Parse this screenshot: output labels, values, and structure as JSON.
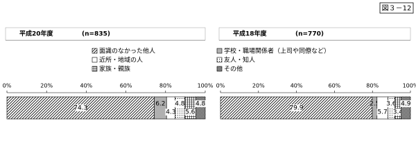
{
  "chart_data": {
    "type": "stacked-bar-horizontal",
    "figure_label": "図３－12",
    "categories": [
      "平成20年度",
      "平成18年度"
    ],
    "subtitles": [
      "(n=835)",
      "(n=770)"
    ],
    "xlim": [
      0,
      100
    ],
    "xticks": [
      {
        "value": 0,
        "label": "0%"
      },
      {
        "value": 20,
        "label": "20%"
      },
      {
        "value": 40,
        "label": "40%"
      },
      {
        "value": 60,
        "label": "60%"
      },
      {
        "value": 80,
        "label": "80%"
      },
      {
        "value": 100,
        "label": "100%"
      }
    ],
    "series": [
      {
        "name": "面識のなかった他人",
        "color": "#ffffff",
        "pattern": "hatch",
        "values": [
          74.3,
          79.9
        ]
      },
      {
        "name": "学校・職場関係者（上司や同僚など）",
        "color": "#b0b0b0",
        "pattern": "none",
        "values": [
          6.2,
          2.5
        ]
      },
      {
        "name": "近所・地域の人",
        "color": "#ffffff",
        "pattern": "none",
        "values": [
          4.3,
          5.7
        ]
      },
      {
        "name": "友人・知人",
        "color": "#ffffff",
        "pattern": "dots",
        "values": [
          4.8,
          3.6
        ]
      },
      {
        "name": "家族・親族",
        "color": "#ffffff",
        "pattern": "grid",
        "values": [
          5.6,
          3.4
        ]
      },
      {
        "name": "その他",
        "color": "#000000",
        "pattern": "checker",
        "values": [
          4.8,
          4.9
        ]
      }
    ]
  }
}
